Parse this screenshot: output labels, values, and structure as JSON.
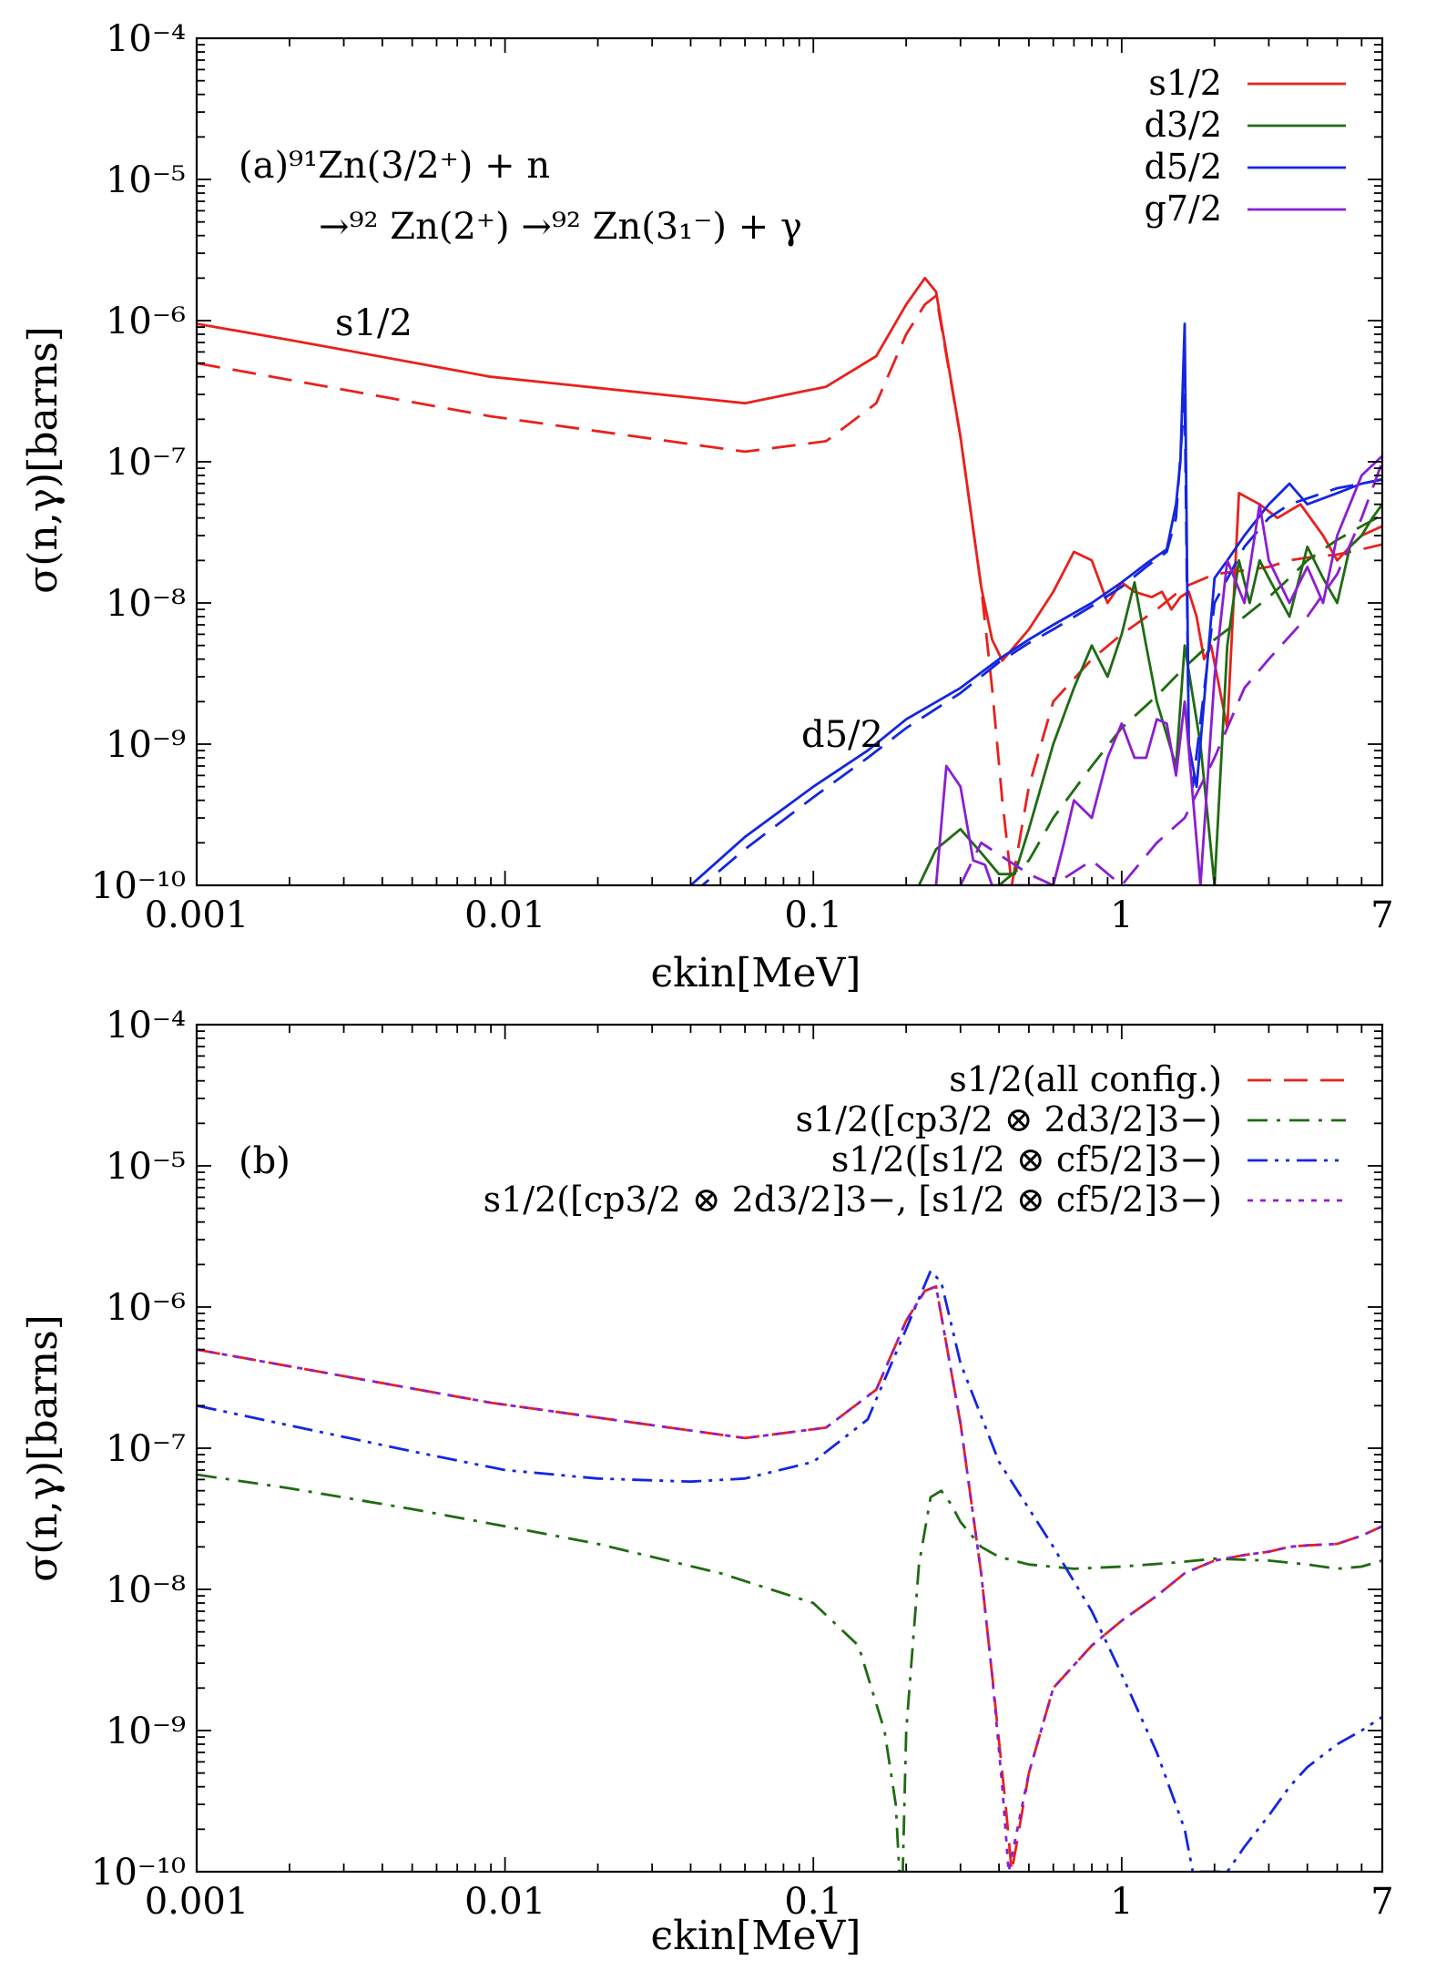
{
  "chart_data": [
    {
      "type": "line",
      "panel_label": "(a)",
      "reaction_line1": "(a)⁹¹Zn(3/2⁺) + n",
      "reaction_line2": "→⁹² Zn(2⁺) →⁹² Zn(3₁⁻) + γ",
      "xlabel": "ϵkin[MeV]",
      "ylabel": "σ(n,γ)[barns]",
      "xscale": "log",
      "yscale": "log",
      "xlim": [
        0.001,
        7
      ],
      "ylim": [
        1e-10,
        0.0001
      ],
      "xticks": [
        0.001,
        0.01,
        0.1,
        1,
        7
      ],
      "xtick_labels": [
        "0.001",
        "0.01",
        "0.1",
        "1",
        "7"
      ],
      "yticks": [
        1e-10,
        1e-09,
        1e-08,
        1e-07,
        1e-06,
        1e-05,
        0.0001
      ],
      "ytick_labels": [
        "10⁻¹⁰",
        "10⁻⁹",
        "10⁻⁸",
        "10⁻⁷",
        "10⁻⁶",
        "10⁻⁵",
        "10⁻⁴"
      ],
      "legend_position": "top-right",
      "annotations": [
        {
          "text": "s1/2",
          "x": 0.0035,
          "y": 1.2e-06
        },
        {
          "text": "d5/2",
          "x": 0.17,
          "y": 1.1e-09
        }
      ],
      "series": [
        {
          "name": "s1/2",
          "color": "#e8211d",
          "dash": "solid",
          "legend": true,
          "x": [
            0.001,
            0.002,
            0.009,
            0.06,
            0.11,
            0.16,
            0.2,
            0.23,
            0.25,
            0.3,
            0.35,
            0.38,
            0.41,
            0.5,
            0.6,
            0.7,
            0.8,
            0.9,
            1.0,
            1.1,
            1.25,
            1.35,
            1.45,
            1.55,
            1.65,
            1.75,
            1.85,
            1.95,
            2.2,
            2.4,
            2.8,
            3.2,
            3.8,
            4.5,
            5.0,
            5.5,
            6.0,
            7.0
          ],
          "y": [
            9.5e-07,
            7.3e-07,
            4e-07,
            2.6e-07,
            3.4e-07,
            5.6e-07,
            1.3e-06,
            2e-06,
            1.6e-06,
            1.5e-07,
            1.3e-08,
            5.5e-09,
            3.9e-09,
            6.5e-09,
            1.2e-08,
            2.3e-08,
            2e-08,
            1e-08,
            1.4e-08,
            1.2e-08,
            1.1e-08,
            1.2e-08,
            9e-09,
            1.1e-08,
            1.2e-08,
            8e-09,
            4e-09,
            5e-09,
            1.3e-09,
            6e-08,
            5e-08,
            4e-08,
            5e-08,
            3e-08,
            2e-08,
            2.5e-08,
            3e-08,
            3.5e-08
          ]
        },
        {
          "name": "s1/2 (dashed)",
          "color": "#e8211d",
          "dash": "long",
          "legend": false,
          "x": [
            0.001,
            0.002,
            0.009,
            0.06,
            0.11,
            0.16,
            0.2,
            0.23,
            0.25,
            0.3,
            0.35,
            0.38,
            0.41,
            0.44,
            0.5,
            0.6,
            0.8,
            1.0,
            1.3,
            1.6,
            2.0,
            2.5,
            3.0,
            3.5,
            4.0,
            5.0,
            6.0,
            7.0
          ],
          "y": [
            5e-07,
            3.8e-07,
            2.1e-07,
            1.18e-07,
            1.4e-07,
            2.6e-07,
            8e-07,
            1.3e-06,
            1.5e-06,
            1.5e-07,
            1.3e-08,
            2.5e-09,
            4e-10,
            1e-10,
            5e-10,
            2e-09,
            4e-09,
            6e-09,
            9e-09,
            1.3e-08,
            1.6e-08,
            1.7e-08,
            1.8e-08,
            2e-08,
            2.1e-08,
            2.2e-08,
            2.4e-08,
            2.6e-08
          ]
        },
        {
          "name": "d3/2",
          "color": "#1f6b12",
          "dash": "solid",
          "legend": true,
          "x": [
            0.22,
            0.25,
            0.3,
            0.35,
            0.4,
            0.45,
            0.5,
            0.6,
            0.7,
            0.8,
            0.9,
            1.0,
            1.1,
            1.2,
            1.3,
            1.5,
            1.6,
            1.8,
            2.0,
            2.2,
            2.4,
            2.6,
            2.8,
            3.0,
            3.5,
            4.0,
            4.5,
            5.0,
            5.5,
            6.0,
            6.5,
            7.0
          ],
          "y": [
            1e-10,
            1.8e-10,
            2.5e-10,
            1.7e-10,
            1.2e-10,
            1.2e-10,
            2.5e-10,
            1e-09,
            2.5e-09,
            5e-09,
            3e-09,
            6e-09,
            1.4e-08,
            5e-09,
            2e-09,
            7e-10,
            5e-09,
            1e-09,
            1e-10,
            5e-09,
            2e-08,
            1e-08,
            2e-08,
            1.5e-08,
            8e-09,
            2.5e-08,
            1.5e-08,
            1e-08,
            2.5e-08,
            3e-08,
            4e-08,
            5e-08
          ]
        },
        {
          "name": "d3/2 (dashed)",
          "color": "#1f6b12",
          "dash": "long",
          "legend": false,
          "x": [
            0.4,
            0.5,
            0.6,
            0.8,
            1.0,
            1.3,
            1.6,
            2.0,
            2.5,
            3.0,
            3.5,
            4.0,
            5.0,
            6.0,
            7.0
          ],
          "y": [
            1e-10,
            1.5e-10,
            3e-10,
            7e-10,
            1.3e-09,
            2.2e-09,
            3.5e-09,
            5.5e-09,
            8e-09,
            1.1e-08,
            1.5e-08,
            2e-08,
            2.8e-08,
            3.5e-08,
            4.2e-08
          ]
        },
        {
          "name": "d5/2",
          "color": "#1426e0",
          "dash": "solid",
          "legend": true,
          "x": [
            0.04,
            0.06,
            0.1,
            0.15,
            0.2,
            0.3,
            0.4,
            0.5,
            0.6,
            0.8,
            1.0,
            1.2,
            1.4,
            1.5,
            1.55,
            1.6,
            1.65,
            1.75,
            1.8,
            2.0,
            2.2,
            2.5,
            3.0,
            3.5,
            4.0,
            4.5,
            5.0,
            5.5,
            6.0,
            7.0
          ],
          "y": [
            1e-10,
            2.2e-10,
            5e-10,
            9e-10,
            1.5e-09,
            2.5e-09,
            4e-09,
            5.5e-09,
            7e-09,
            1e-08,
            1.4e-08,
            1.9e-08,
            2.4e-08,
            5e-08,
            1e-07,
            9.5e-07,
            1e-09,
            5e-10,
            1e-09,
            1.5e-08,
            2e-08,
            3e-08,
            5e-08,
            7e-08,
            5e-08,
            5.5e-08,
            6e-08,
            6.5e-08,
            7e-08,
            7.5e-08
          ]
        },
        {
          "name": "d5/2 (dashed)",
          "color": "#1426e0",
          "dash": "long",
          "legend": false,
          "x": [
            0.04,
            0.06,
            0.1,
            0.15,
            0.2,
            0.3,
            0.4,
            0.5,
            0.6,
            0.8,
            1.0,
            1.2,
            1.4,
            1.5,
            1.6,
            1.65,
            1.7,
            2.0,
            2.5,
            3.0,
            3.5,
            4.0,
            5.0,
            6.0,
            7.0
          ],
          "y": [
            8.5e-11,
            1.8e-10,
            4.2e-10,
            8e-10,
            1.3e-09,
            2.3e-09,
            3.8e-09,
            5.2e-09,
            6.5e-09,
            9.5e-09,
            1.3e-08,
            1.8e-08,
            2.3e-08,
            4e-08,
            3e-07,
            1e-09,
            5e-10,
            1e-08,
            2.5e-08,
            4e-08,
            5e-08,
            5.5e-08,
            6.5e-08,
            7e-08,
            7.5e-08
          ]
        },
        {
          "name": "g7/2",
          "color": "#8a1fd1",
          "dash": "solid",
          "legend": true,
          "x": [
            0.25,
            0.27,
            0.3,
            0.33,
            0.36,
            0.38,
            0.4,
            0.6,
            0.65,
            0.7,
            0.8,
            0.9,
            1.0,
            1.1,
            1.2,
            1.3,
            1.4,
            1.5,
            1.6,
            1.8,
            2.0,
            2.2,
            2.5,
            2.8,
            3.0,
            3.5,
            4.0,
            4.5,
            5.0,
            5.5,
            6.0,
            7.0
          ],
          "y": [
            1e-10,
            7e-10,
            5e-10,
            1.5e-10,
            1.4e-10,
            1e-10,
            1e-10,
            1e-10,
            2e-10,
            4e-10,
            3e-10,
            8e-10,
            1.4e-09,
            8e-10,
            8e-10,
            1.5e-09,
            1.4e-09,
            6e-10,
            2e-09,
            1e-10,
            3e-09,
            2e-08,
            1e-08,
            5e-08,
            2e-08,
            1e-08,
            1.8e-08,
            1e-08,
            3e-08,
            5e-08,
            8e-08,
            1.1e-07
          ]
        },
        {
          "name": "g7/2 (dashed)",
          "color": "#8a1fd1",
          "dash": "long",
          "legend": false,
          "x": [
            0.3,
            0.35,
            0.5,
            0.6,
            0.8,
            1.0,
            1.3,
            1.6,
            2.0,
            2.5,
            3.0,
            4.0,
            5.0,
            6.0,
            7.0
          ],
          "y": [
            1e-10,
            2e-10,
            1.2e-10,
            1e-10,
            1.5e-10,
            1e-10,
            2e-10,
            3e-10,
            8e-10,
            2.5e-09,
            4e-09,
            8e-09,
            1.6e-08,
            4e-08,
            1e-07
          ]
        }
      ]
    },
    {
      "type": "line",
      "panel_label": "(b)",
      "xlabel": "ϵkin[MeV]",
      "ylabel": "σ(n,γ)[barns]",
      "xscale": "log",
      "yscale": "log",
      "xlim": [
        0.001,
        7
      ],
      "ylim": [
        1e-10,
        0.0001
      ],
      "xticks": [
        0.001,
        0.01,
        0.1,
        1,
        7
      ],
      "xtick_labels": [
        "0.001",
        "0.01",
        "0.1",
        "1",
        "7"
      ],
      "yticks": [
        1e-10,
        1e-09,
        1e-08,
        1e-07,
        1e-06,
        1e-05,
        0.0001
      ],
      "ytick_labels": [
        "10⁻¹⁰",
        "10⁻⁹",
        "10⁻⁸",
        "10⁻⁷",
        "10⁻⁶",
        "10⁻⁵",
        "10⁻⁴"
      ],
      "legend_position": "top-right",
      "series": [
        {
          "name": "s1/2(all config.)",
          "color": "#e8211d",
          "dash": "long",
          "legend": true,
          "x": [
            0.001,
            0.002,
            0.009,
            0.06,
            0.11,
            0.16,
            0.2,
            0.23,
            0.25,
            0.3,
            0.35,
            0.38,
            0.42,
            0.44,
            0.5,
            0.6,
            0.8,
            1.0,
            1.3,
            1.6,
            2.0,
            2.5,
            3.0,
            3.5,
            4.0,
            5.0,
            6.0,
            7.0
          ],
          "y": [
            5e-07,
            3.8e-07,
            2.1e-07,
            1.18e-07,
            1.4e-07,
            2.6e-07,
            8e-07,
            1.3e-06,
            1.4e-06,
            1.5e-07,
            1.3e-08,
            2.5e-09,
            3e-10,
            1e-10,
            5e-10,
            2e-09,
            4e-09,
            6e-09,
            9e-09,
            1.3e-08,
            1.6e-08,
            1.75e-08,
            1.85e-08,
            2e-08,
            2.05e-08,
            2.1e-08,
            2.4e-08,
            2.8e-08
          ]
        },
        {
          "name": "s1/2([cp3/2 ⊗ 2d3/2]3−)",
          "color": "#1f6b12",
          "dash": "dashdot",
          "legend": true,
          "x": [
            0.001,
            0.002,
            0.005,
            0.01,
            0.02,
            0.05,
            0.1,
            0.14,
            0.17,
            0.185,
            0.19,
            0.195,
            0.2,
            0.22,
            0.24,
            0.26,
            0.28,
            0.3,
            0.35,
            0.4,
            0.5,
            0.7,
            1.0,
            1.5,
            2.0,
            3.0,
            4.0,
            5.0,
            6.0,
            7.0
          ],
          "y": [
            6.5e-08,
            5.2e-08,
            3.7e-08,
            2.8e-08,
            2.1e-08,
            1.3e-08,
            8e-09,
            4e-09,
            1e-09,
            3e-10,
            1e-10,
            1e-10,
            1e-09,
            1.5e-08,
            4.5e-08,
            5e-08,
            4e-08,
            3e-08,
            2e-08,
            1.7e-08,
            1.5e-08,
            1.4e-08,
            1.45e-08,
            1.55e-08,
            1.65e-08,
            1.6e-08,
            1.5e-08,
            1.4e-08,
            1.45e-08,
            1.6e-08
          ]
        },
        {
          "name": "s1/2([s1/2 ⊗ cf5/2]3−)",
          "color": "#1426e0",
          "dash": "dashdotdot",
          "legend": true,
          "x": [
            0.001,
            0.002,
            0.005,
            0.01,
            0.02,
            0.04,
            0.06,
            0.1,
            0.15,
            0.2,
            0.24,
            0.26,
            0.3,
            0.4,
            0.6,
            0.8,
            1.0,
            1.3,
            1.6,
            1.7,
            2.2,
            2.5,
            3.0,
            3.5,
            4.0,
            5.0,
            6.0,
            7.0
          ],
          "y": [
            2e-07,
            1.45e-07,
            9.5e-08,
            7e-08,
            6.1e-08,
            5.8e-08,
            6.1e-08,
            8e-08,
            1.6e-07,
            7e-07,
            1.8e-06,
            1.5e-06,
            4e-07,
            8e-08,
            2e-08,
            7e-09,
            2.5e-09,
            7e-10,
            2e-10,
            1e-10,
            1e-10,
            1.5e-10,
            2.5e-10,
            4e-10,
            5.5e-10,
            8e-10,
            1e-09,
            1.25e-09
          ]
        },
        {
          "name": "s1/2([cp3/2 ⊗ 2d3/2]3−, [s1/2 ⊗ cf5/2]3−)",
          "color": "#8a1fd1",
          "dash": "dotted",
          "legend": true,
          "x": [
            0.001,
            0.002,
            0.009,
            0.06,
            0.11,
            0.16,
            0.2,
            0.23,
            0.25,
            0.3,
            0.35,
            0.38,
            0.41,
            0.43,
            0.5,
            0.6,
            0.8,
            1.0,
            1.3,
            1.6,
            2.0,
            2.5,
            3.0,
            3.5,
            4.0,
            5.0,
            6.0,
            7.0
          ],
          "y": [
            5e-07,
            3.8e-07,
            2.1e-07,
            1.18e-07,
            1.4e-07,
            2.6e-07,
            8e-07,
            1.3e-06,
            1.4e-06,
            1.5e-07,
            1.3e-08,
            2.5e-09,
            4e-10,
            1e-10,
            5e-10,
            2e-09,
            4e-09,
            6e-09,
            9e-09,
            1.3e-08,
            1.6e-08,
            1.75e-08,
            1.85e-08,
            2e-08,
            2.05e-08,
            2.1e-08,
            2.4e-08,
            2.8e-08
          ]
        }
      ]
    }
  ]
}
